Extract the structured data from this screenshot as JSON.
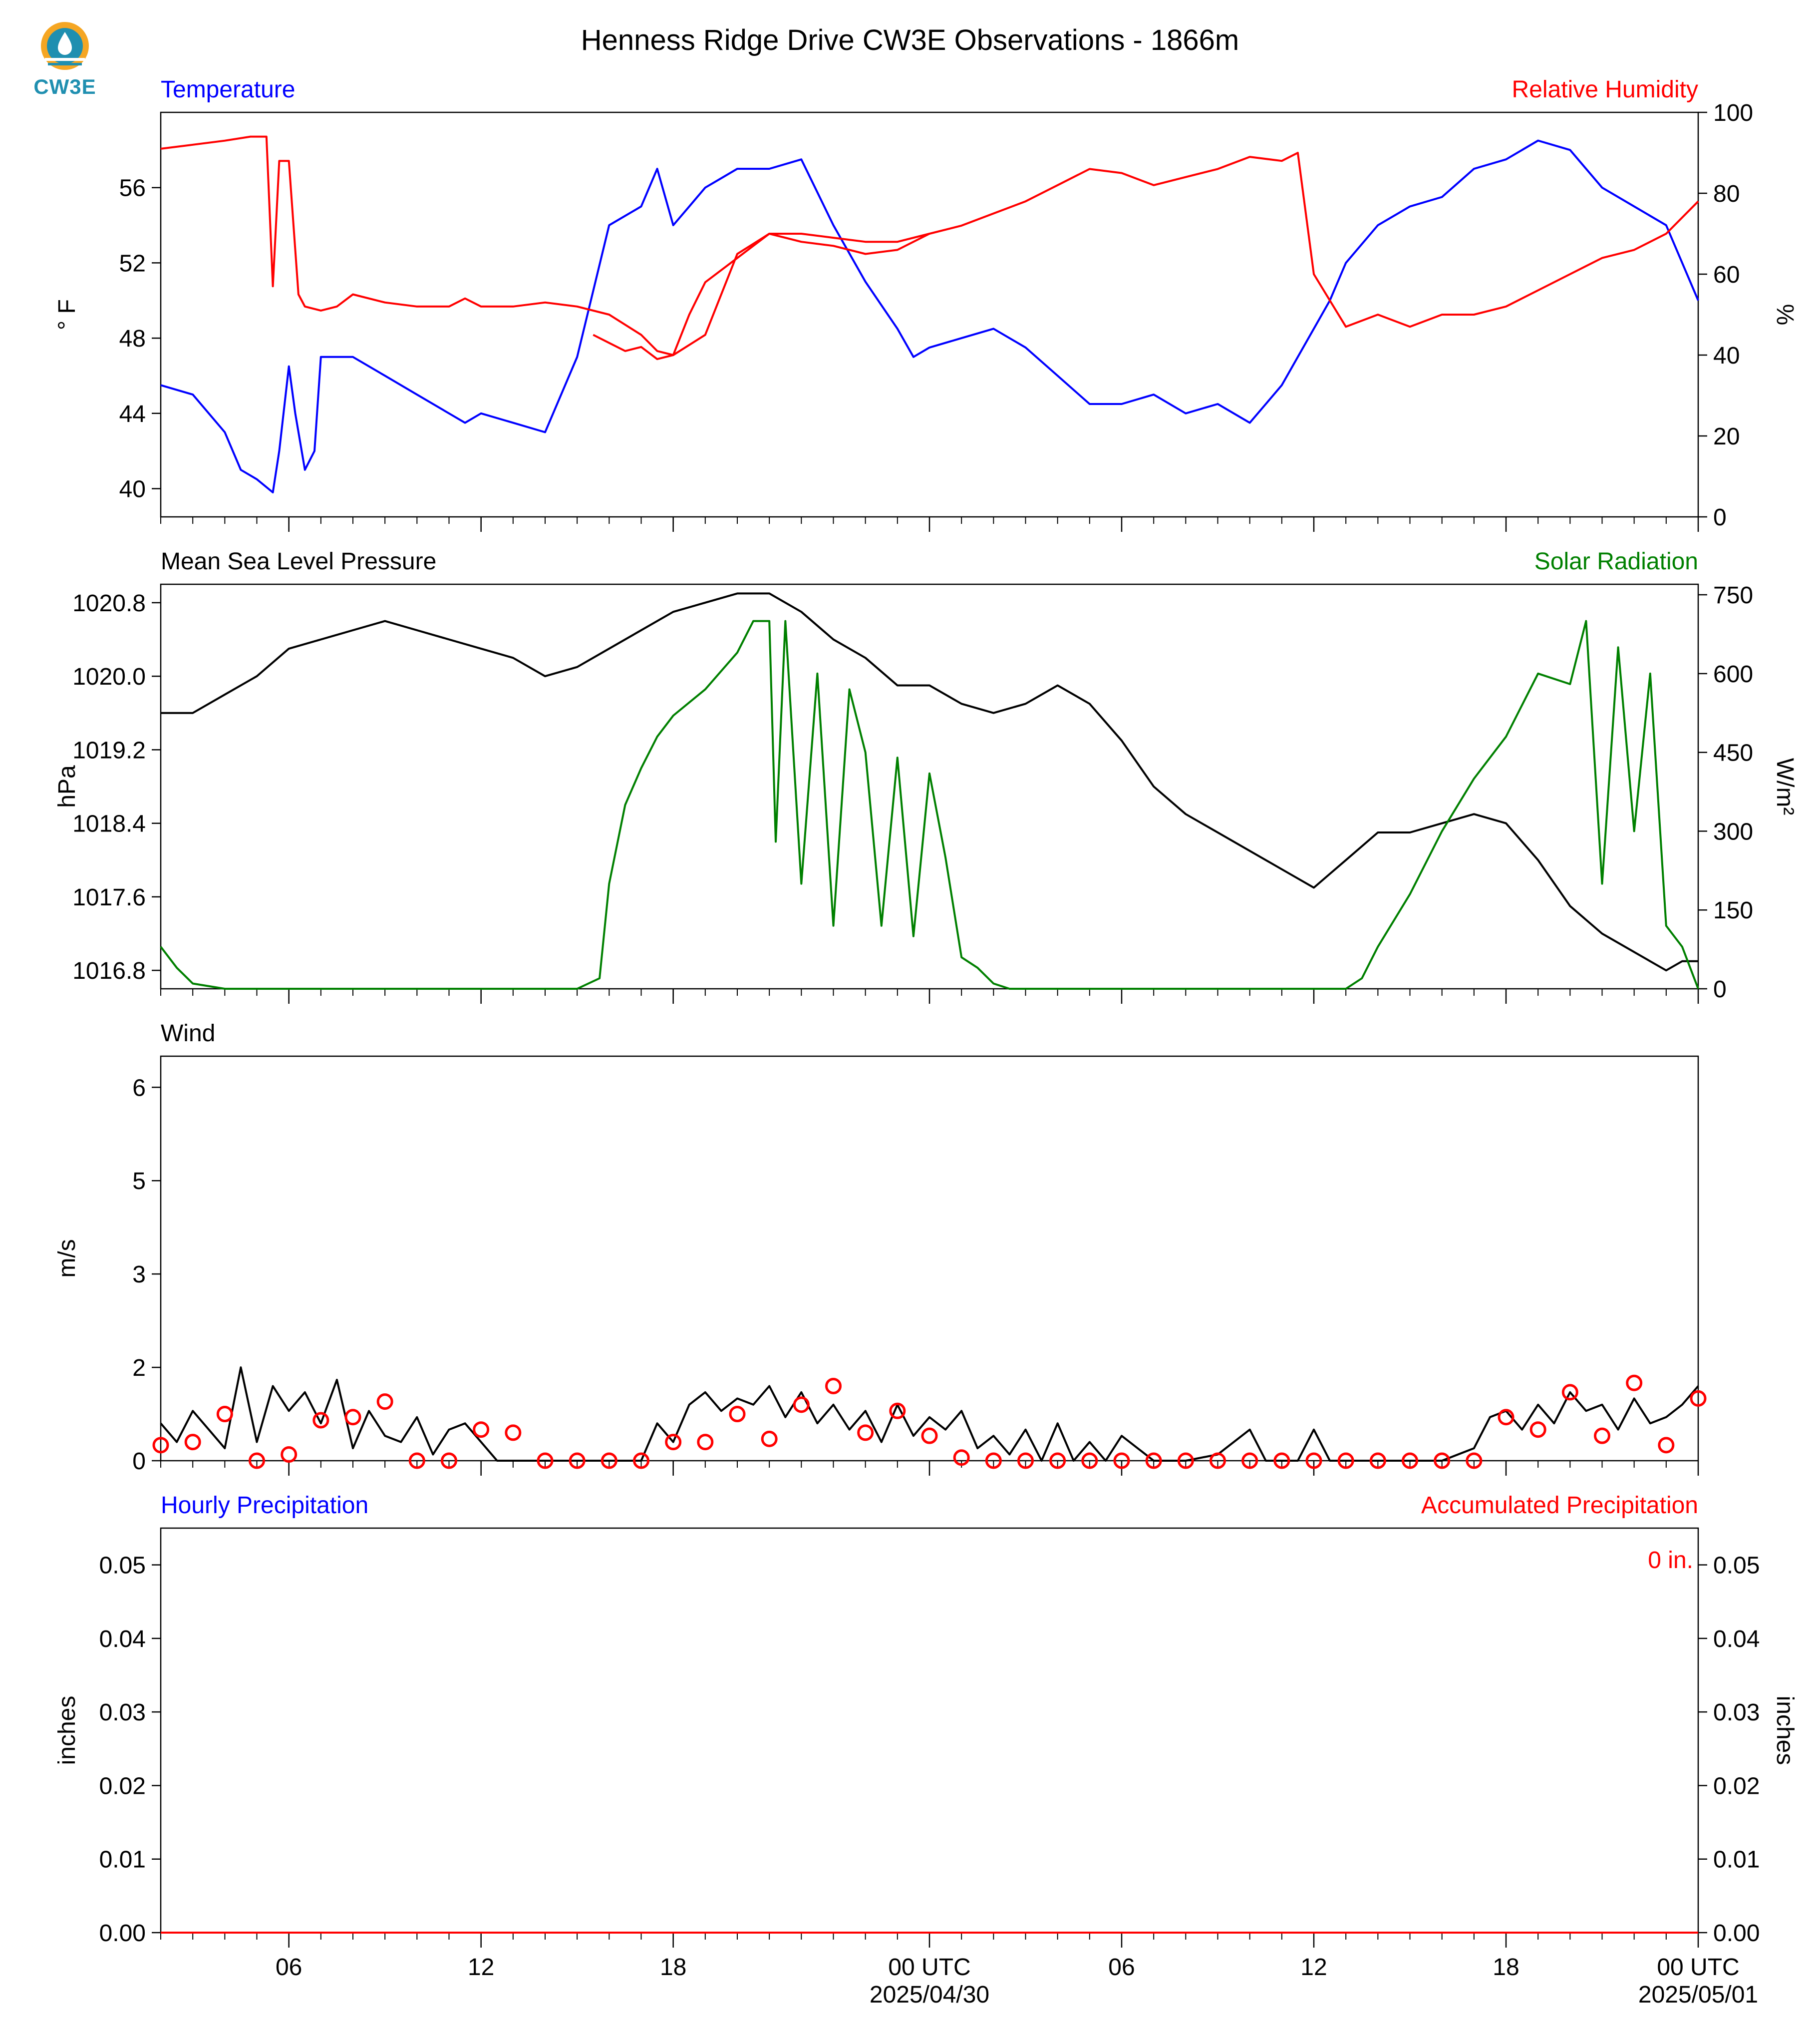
{
  "title": "Henness Ridge Drive CW3E Observations - 1866m",
  "logo": {
    "text": "CW3E",
    "color": "#1f8fb0",
    "accent": "#f5a623"
  },
  "colors": {
    "temperature": "#0000ff",
    "humidity": "#ff0000",
    "pressure": "#000000",
    "solar": "#008000",
    "wind": "#000000",
    "wind_marker": "#ff0000",
    "hourly_precip": "#0000ff",
    "accum_precip": "#ff0000"
  },
  "time_axis": {
    "range_hours": [
      -24,
      24
    ],
    "ticks": [
      {
        "hour": -20,
        "label": "06"
      },
      {
        "hour": -14,
        "label": "12"
      },
      {
        "hour": -8,
        "label": "18"
      },
      {
        "hour": 0,
        "label": "00 UTC",
        "sublabel": "2025/04/30"
      },
      {
        "hour": 6,
        "label": "06"
      },
      {
        "hour": 12,
        "label": "12"
      },
      {
        "hour": 18,
        "label": "18"
      },
      {
        "hour": 24,
        "label": "00 UTC",
        "sublabel": "2025/05/01"
      }
    ]
  },
  "chart_data": [
    {
      "type": "line",
      "left_title": "Temperature",
      "right_title": "Relative Humidity",
      "ylabel": "° F",
      "ylabel_right": "%",
      "ylim": [
        38.5,
        60.0
      ],
      "ylim_right": [
        0,
        100
      ],
      "yticks": [
        40,
        44,
        48,
        52,
        56
      ],
      "yticks_right": [
        0,
        20,
        40,
        60,
        80,
        100
      ],
      "series": [
        {
          "name": "Temperature",
          "axis": "left",
          "x": [
            -24,
            -23,
            -22,
            -21.5,
            -21,
            -20.5,
            -20.3,
            -20,
            -19.8,
            -19.5,
            -19.2,
            -19,
            -18.5,
            -18,
            -17,
            -16,
            -15,
            -14.5,
            -14,
            -13,
            -12,
            -11,
            -10,
            -9,
            -8.5,
            -8,
            -7.5,
            -7,
            -6.5,
            -6,
            -5,
            -4,
            -3,
            -2,
            -1,
            -0.5,
            0,
            1,
            2,
            3,
            4,
            5,
            6,
            7,
            8,
            9,
            10,
            10.5,
            11,
            11.5,
            12,
            12.5,
            13,
            14,
            15,
            16,
            17,
            18,
            19,
            20,
            21,
            22,
            23,
            24
          ],
          "y": [
            45.5,
            45,
            43,
            41,
            40.5,
            39.8,
            42,
            46.5,
            44,
            41,
            42,
            47,
            47,
            47,
            46,
            45,
            44,
            43.5,
            44,
            43.5,
            43,
            47,
            54,
            55,
            57,
            54,
            55,
            56,
            56.5,
            57,
            57,
            57.5,
            54,
            51,
            48.5,
            47,
            47.5,
            48,
            48.5,
            47.5,
            46,
            44.5,
            44.5,
            45,
            44,
            44.5,
            43.5,
            44.5,
            45.5,
            47,
            48.5,
            50,
            52,
            54,
            55,
            55.5,
            57,
            57.5,
            58.5,
            58,
            56,
            55,
            54,
            50
          ]
        },
        {
          "name": "Relative Humidity",
          "axis": "right",
          "x": [
            -24,
            -23,
            -22,
            -21.2,
            -21,
            -20.7,
            -20.5,
            -20.3,
            -20,
            -19.7,
            -19.5,
            -19,
            -18.5,
            -18,
            -17,
            -16,
            -15,
            -14.5,
            -14,
            -13,
            -12,
            -11,
            -10,
            -9,
            -8.5,
            -8,
            -7,
            -6,
            -5,
            -4,
            -3,
            -2,
            -1,
            0,
            1,
            2,
            3,
            4,
            5,
            6,
            7,
            8,
            9,
            10,
            11,
            11.5,
            12,
            13,
            14,
            15,
            16,
            17,
            18,
            19,
            20,
            21,
            22,
            23,
            24
          ],
          "y": [
            91,
            92,
            93,
            94,
            94,
            94,
            57,
            88,
            88,
            55,
            52,
            51,
            52,
            55,
            53,
            52,
            52,
            54,
            52,
            52,
            53,
            52,
            50,
            45,
            41,
            40,
            45,
            65,
            70,
            70,
            69,
            68,
            68,
            70,
            72,
            75,
            78,
            82,
            86,
            85,
            82,
            84,
            86,
            89,
            88,
            90,
            60,
            47,
            50,
            47,
            50,
            50,
            52,
            56,
            60,
            64,
            66,
            70,
            78
          ]
        },
        {
          "name": "Relative Humidity (lower trace)",
          "axis": "right",
          "x": [
            -10.5,
            -10,
            -9.5,
            -9,
            -8.5,
            -8,
            -7.5,
            -7,
            -6,
            -5,
            -4,
            -3,
            -2,
            -1,
            0
          ],
          "y": [
            45,
            43,
            41,
            42,
            39,
            40,
            50,
            58,
            64,
            70,
            68,
            67,
            65,
            66,
            70
          ]
        }
      ]
    },
    {
      "type": "line",
      "left_title": "Mean Sea Level Pressure",
      "right_title": "Solar Radiation",
      "ylabel": "hPa",
      "ylabel_right": "W/m²",
      "ylim": [
        1016.6,
        1021.0
      ],
      "ylim_right": [
        0,
        770
      ],
      "yticks": [
        1016.8,
        1017.6,
        1018.4,
        1019.2,
        1020.0,
        1020.8
      ],
      "yticks_right": [
        0,
        150,
        300,
        450,
        600,
        750
      ],
      "series": [
        {
          "name": "Mean Sea Level Pressure",
          "axis": "left",
          "x": [
            -24,
            -23,
            -22,
            -21,
            -20,
            -19,
            -18,
            -17,
            -16,
            -15,
            -14,
            -13,
            -12,
            -11,
            -10,
            -9,
            -8,
            -7,
            -6,
            -5,
            -4,
            -3,
            -2,
            -1,
            0,
            1,
            2,
            3,
            4,
            5,
            6,
            7,
            8,
            9,
            10,
            11,
            12,
            13,
            14,
            15,
            16,
            17,
            18,
            19,
            20,
            21,
            22,
            23,
            23.5,
            24
          ],
          "y": [
            1019.6,
            1019.6,
            1019.8,
            1020.0,
            1020.3,
            1020.4,
            1020.5,
            1020.6,
            1020.5,
            1020.4,
            1020.3,
            1020.2,
            1020.0,
            1020.1,
            1020.3,
            1020.5,
            1020.7,
            1020.8,
            1020.9,
            1020.9,
            1020.7,
            1020.4,
            1020.2,
            1019.9,
            1019.9,
            1019.7,
            1019.6,
            1019.7,
            1019.9,
            1019.7,
            1019.3,
            1018.8,
            1018.5,
            1018.3,
            1018.1,
            1017.9,
            1017.7,
            1018.0,
            1018.3,
            1018.3,
            1018.4,
            1018.5,
            1018.4,
            1018.0,
            1017.5,
            1017.2,
            1017.0,
            1016.8,
            1016.9,
            1016.9
          ]
        },
        {
          "name": "Solar Radiation",
          "axis": "right",
          "x": [
            -24,
            -23.5,
            -23,
            -22,
            -20,
            -18,
            -15,
            -14,
            -13,
            -12,
            -11,
            -10.3,
            -10,
            -9.5,
            -9,
            -8.5,
            -8,
            -7,
            -6,
            -5.5,
            -5,
            -4.8,
            -4.5,
            -4,
            -3.5,
            -3,
            -2.5,
            -2,
            -1.5,
            -1,
            -0.5,
            0,
            0.5,
            1,
            1.5,
            2,
            2.5,
            3,
            4,
            6,
            10,
            12,
            13,
            13.5,
            14,
            15,
            16,
            17,
            18,
            19,
            20,
            20.5,
            21,
            21.5,
            22,
            22.5,
            23,
            23.5,
            24
          ],
          "y": [
            80,
            40,
            10,
            0,
            0,
            0,
            0,
            0,
            0,
            0,
            0,
            20,
            200,
            350,
            420,
            480,
            520,
            570,
            640,
            700,
            700,
            280,
            700,
            200,
            600,
            120,
            570,
            450,
            120,
            440,
            100,
            410,
            250,
            60,
            40,
            10,
            0,
            0,
            0,
            0,
            0,
            0,
            0,
            20,
            80,
            180,
            300,
            400,
            480,
            600,
            580,
            700,
            200,
            650,
            300,
            600,
            120,
            80,
            0
          ]
        }
      ]
    },
    {
      "type": "line",
      "left_title": "Wind",
      "ylabel": "m/s",
      "ylim": [
        0,
        6.5
      ],
      "yticks": [
        0.0,
        1.5,
        3.0,
        4.5,
        6.0
      ],
      "series": [
        {
          "name": "Wind speed",
          "axis": "left",
          "x": [
            -24,
            -23.5,
            -23,
            -22.5,
            -22,
            -21.5,
            -21,
            -20.5,
            -20,
            -19.5,
            -19,
            -18.5,
            -18,
            -17.5,
            -17,
            -16.5,
            -16,
            -15.5,
            -15,
            -14.5,
            -14,
            -13.5,
            -13,
            -12,
            -11,
            -10,
            -9,
            -8.5,
            -8,
            -7.5,
            -7,
            -6.5,
            -6,
            -5.5,
            -5,
            -4.5,
            -4,
            -3.5,
            -3,
            -2.5,
            -2,
            -1.5,
            -1,
            -0.5,
            0,
            0.5,
            1,
            1.5,
            2,
            2.5,
            3,
            3.5,
            4,
            4.5,
            5,
            5.5,
            6,
            7,
            8,
            9,
            10,
            10.5,
            11,
            11.5,
            12,
            12.5,
            13,
            14,
            15,
            16,
            17,
            17.5,
            18,
            18.5,
            19,
            19.5,
            20,
            20.5,
            21,
            21.5,
            22,
            22.5,
            23,
            23.5,
            24
          ],
          "y": [
            0.6,
            0.3,
            0.8,
            0.5,
            0.2,
            1.5,
            0.3,
            1.2,
            0.8,
            1.1,
            0.6,
            1.3,
            0.2,
            0.8,
            0.4,
            0.3,
            0.7,
            0.1,
            0.5,
            0.6,
            0.3,
            0,
            0,
            0,
            0,
            0,
            0,
            0.6,
            0.3,
            0.9,
            1.1,
            0.8,
            1.0,
            0.9,
            1.2,
            0.7,
            1.1,
            0.6,
            0.9,
            0.5,
            0.8,
            0.3,
            0.9,
            0.4,
            0.7,
            0.5,
            0.8,
            0.2,
            0.4,
            0.1,
            0.5,
            0,
            0.6,
            0,
            0.3,
            0,
            0.4,
            0,
            0,
            0.1,
            0.5,
            0,
            0,
            0,
            0.5,
            0,
            0,
            0,
            0,
            0,
            0.2,
            0.7,
            0.8,
            0.5,
            0.9,
            0.6,
            1.1,
            0.8,
            0.9,
            0.5,
            1.0,
            0.6,
            0.7,
            0.9,
            1.2
          ]
        },
        {
          "name": "Hourly wind markers",
          "axis": "left",
          "style": "circle",
          "x": [
            -24,
            -23,
            -22,
            -21,
            -20,
            -19,
            -18,
            -17,
            -16,
            -15,
            -14,
            -13,
            -12,
            -11,
            -10,
            -9,
            -8,
            -7,
            -6,
            -5,
            -4,
            -3,
            -2,
            -1,
            0,
            1,
            2,
            3,
            4,
            5,
            6,
            7,
            8,
            9,
            10,
            11,
            12,
            13,
            14,
            15,
            16,
            17,
            18,
            19,
            20,
            21,
            22,
            23,
            24
          ],
          "y": [
            0.25,
            0.3,
            0.75,
            0.0,
            0.1,
            0.65,
            0.7,
            0.95,
            0.0,
            0.0,
            0.5,
            0.45,
            0.0,
            0.0,
            0.0,
            0.0,
            0.3,
            0.3,
            0.75,
            0.35,
            0.9,
            1.2,
            0.45,
            0.8,
            0.4,
            0.05,
            0.0,
            0.0,
            0.0,
            0.0,
            0.0,
            0.0,
            0.0,
            0.0,
            0.0,
            0.0,
            0.0,
            0.0,
            0.0,
            0.0,
            0.0,
            0.0,
            0.7,
            0.5,
            1.1,
            0.4,
            1.25,
            0.25,
            1.0
          ]
        }
      ]
    },
    {
      "type": "line",
      "left_title": "Hourly Precipitation",
      "right_title": "Accumulated Precipitation",
      "annotation": "0 in.",
      "ylabel": "inches",
      "ylabel_right": "inches",
      "ylim": [
        0,
        0.055
      ],
      "ylim_right": [
        0,
        0.055
      ],
      "yticks": [
        0.0,
        0.01,
        0.02,
        0.03,
        0.04,
        0.05
      ],
      "yticks_right": [
        0.0,
        0.01,
        0.02,
        0.03,
        0.04,
        0.05
      ],
      "series": [
        {
          "name": "Accumulated Precipitation",
          "axis": "right",
          "x": [
            -24,
            24
          ],
          "y": [
            0,
            0
          ]
        }
      ]
    }
  ]
}
